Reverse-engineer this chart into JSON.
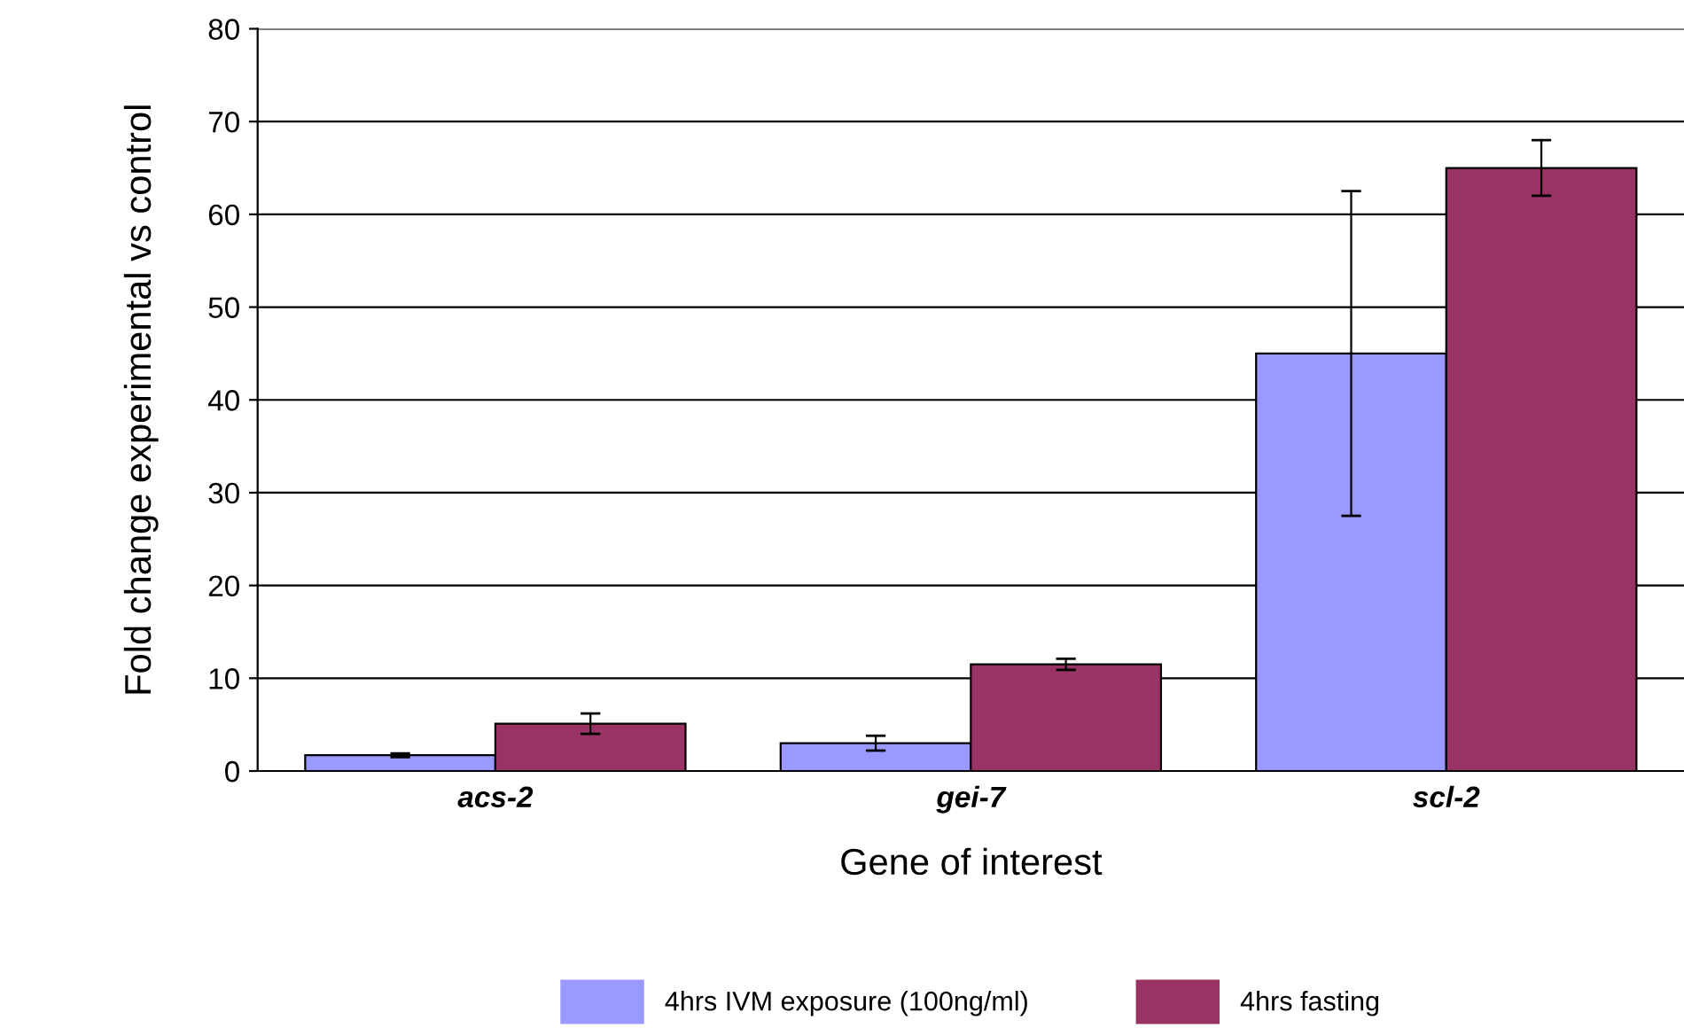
{
  "chart_data": {
    "type": "bar",
    "xlabel": "Gene of interest",
    "ylabel": "Fold change experimental vs control",
    "categories": [
      "acs-2",
      "gei-7",
      "scl-2"
    ],
    "series": [
      {
        "name": "4hrs IVM exposure (100ng/ml)",
        "color": "#9999ff",
        "values": [
          1.7,
          3.0,
          45
        ],
        "errors": [
          0.2,
          0.8,
          17.5
        ]
      },
      {
        "name": "4hrs fasting",
        "color": "#993366",
        "values": [
          5.1,
          11.5,
          65
        ],
        "errors": [
          1.1,
          0.6,
          3
        ]
      }
    ],
    "ylim": [
      0,
      80
    ],
    "yticks": [
      0,
      10,
      20,
      30,
      40,
      50,
      60,
      70,
      80
    ],
    "grid": "y",
    "legend": "bottom"
  }
}
